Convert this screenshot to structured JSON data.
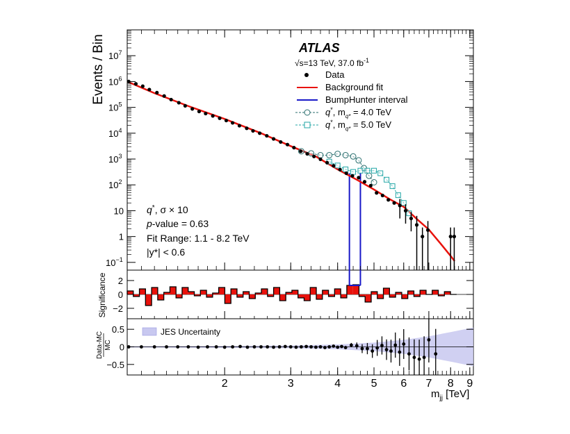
{
  "chart_data": {
    "type": "scatter",
    "experiment": "ATLAS",
    "energy_lumi": {
      "sqrt": "√",
      "s_eq": "s=13 TeV, 37.0 fb",
      "exp": "-1"
    },
    "legend": {
      "data": "Data",
      "bkg": "Background fit",
      "bh": "BumpHunter interval",
      "q4": {
        "pre": "q",
        "sup": "*",
        "mid": ", m",
        "sub": "q*",
        "post": " = 4.0 TeV"
      },
      "q5": {
        "pre": "q",
        "sup": "*",
        "mid": ", m",
        "sub": "q*",
        "post": " = 5.0 TeV"
      }
    },
    "info": {
      "signal": {
        "q": "q",
        "star": "*",
        "rest": ",  σ × 10"
      },
      "pvalue": {
        "p": "p",
        "rest": "-value = 0.63"
      },
      "fit_range": "Fit Range: 1.1 - 8.2 TeV",
      "ystar": "|y*| < 0.6"
    },
    "ylabel": "Events / Bin",
    "sig_ylabel": "Significance",
    "ratio_ylabel": {
      "num": "Data-MC",
      "den": "MC"
    },
    "jes_label": "JES Uncertainty",
    "xlabel": {
      "m": "m",
      "sub": "jj",
      "unit": " [TeV]"
    },
    "x_range": [
      1.1,
      9.2
    ],
    "x_ticks": [
      2,
      3,
      4,
      5,
      6,
      7,
      8,
      9
    ],
    "y_log_range": [
      -1.3,
      8.0
    ],
    "y_ticks": [
      {
        "exp": 7,
        "label": "10",
        "sup": "7"
      },
      {
        "exp": 6,
        "label": "10",
        "sup": "6"
      },
      {
        "exp": 5,
        "label": "10",
        "sup": "5"
      },
      {
        "exp": 4,
        "label": "10",
        "sup": "4"
      },
      {
        "exp": 3,
        "label": "10",
        "sup": "3"
      },
      {
        "exp": 2,
        "label": "10",
        "sup": "2"
      },
      {
        "exp": 1,
        "label": "10",
        "sup": ""
      },
      {
        "exp": 0,
        "label": "1",
        "sup": ""
      },
      {
        "exp": -1,
        "label": "10",
        "sup": "−1"
      }
    ],
    "sig_range": [
      -3.5,
      3.5
    ],
    "sig_ticks": [
      2,
      0,
      -2
    ],
    "ratio_range": [
      -0.8,
      0.8
    ],
    "ratio_ticks": [
      0.5,
      0,
      -0.5
    ],
    "bumphunter_interval": [
      4.3,
      4.6
    ],
    "colors": {
      "data": "#000000",
      "bkg": "#e8120c",
      "bh": "#1818c8",
      "q4": "#2a6e6e",
      "q5": "#22a6a6",
      "jes": "#c8c8f0",
      "sig_fill": "#e8120c"
    },
    "background_fit": [
      [
        1.1,
        6.0
      ],
      [
        1.3,
        5.55
      ],
      [
        1.6,
        5.05
      ],
      [
        2.0,
        4.55
      ],
      [
        2.5,
        4.0
      ],
      [
        3.0,
        3.5
      ],
      [
        3.5,
        3.1
      ],
      [
        4.0,
        2.6
      ],
      [
        4.5,
        2.2
      ],
      [
        5.0,
        1.82
      ],
      [
        5.5,
        1.45
      ],
      [
        6.0,
        1.15
      ],
      [
        6.5,
        0.68
      ],
      [
        7.0,
        0.27
      ],
      [
        7.5,
        -0.25
      ],
      [
        8.0,
        -0.75
      ],
      [
        8.2,
        -0.95
      ]
    ],
    "data_points": [
      [
        1.11,
        6.0
      ],
      [
        1.16,
        5.91
      ],
      [
        1.21,
        5.82
      ],
      [
        1.26,
        5.69
      ],
      [
        1.32,
        5.57
      ],
      [
        1.38,
        5.44
      ],
      [
        1.44,
        5.3
      ],
      [
        1.51,
        5.18
      ],
      [
        1.57,
        5.06
      ],
      [
        1.64,
        4.94
      ],
      [
        1.71,
        4.84
      ],
      [
        1.78,
        4.76
      ],
      [
        1.86,
        4.67
      ],
      [
        1.94,
        4.58
      ],
      [
        2.02,
        4.49
      ],
      [
        2.1,
        4.4
      ],
      [
        2.19,
        4.29
      ],
      [
        2.29,
        4.19
      ],
      [
        2.38,
        4.09
      ],
      [
        2.48,
        4.0
      ],
      [
        2.59,
        3.9
      ],
      [
        2.7,
        3.78
      ],
      [
        2.82,
        3.66
      ],
      [
        2.94,
        3.56
      ],
      [
        3.06,
        3.44
      ],
      [
        3.19,
        3.3
      ],
      [
        3.32,
        3.2
      ],
      [
        3.46,
        3.1
      ],
      [
        3.6,
        2.99
      ],
      [
        3.75,
        2.86
      ],
      [
        3.9,
        2.74
      ],
      [
        4.06,
        2.59
      ],
      [
        4.22,
        2.45
      ],
      [
        4.38,
        2.35
      ],
      [
        4.55,
        2.28
      ],
      [
        4.72,
        2.12
      ],
      [
        4.9,
        1.97
      ],
      [
        5.08,
        1.69
      ],
      [
        5.27,
        1.59
      ],
      [
        5.46,
        1.42
      ],
      [
        5.66,
        1.3
      ],
      [
        5.86,
        1.2
      ],
      [
        6.07,
        1.0
      ],
      [
        6.28,
        0.7
      ],
      [
        6.5,
        0.45
      ],
      [
        6.73,
        0.0
      ],
      [
        6.96,
        0.25
      ],
      [
        8.0,
        0.0
      ],
      [
        8.18,
        0.0
      ]
    ],
    "q4_points": [
      [
        3.2,
        3.3
      ],
      [
        3.4,
        3.22
      ],
      [
        3.6,
        3.15
      ],
      [
        3.8,
        3.15
      ],
      [
        4.0,
        3.2
      ],
      [
        4.2,
        3.15
      ],
      [
        4.4,
        3.1
      ],
      [
        4.55,
        2.95
      ],
      [
        4.7,
        2.65
      ],
      [
        4.85,
        2.35
      ],
      [
        5.0,
        2.1
      ]
    ],
    "q5_points": [
      [
        3.8,
        2.9
      ],
      [
        4.0,
        2.75
      ],
      [
        4.2,
        2.6
      ],
      [
        4.4,
        2.5
      ],
      [
        4.6,
        2.55
      ],
      [
        4.8,
        2.55
      ],
      [
        5.0,
        2.55
      ],
      [
        5.2,
        2.45
      ],
      [
        5.4,
        2.2
      ],
      [
        5.6,
        1.95
      ],
      [
        5.8,
        1.6
      ],
      [
        6.0,
        1.3
      ],
      [
        6.2,
        0.9
      ]
    ],
    "significance": [
      0.5,
      -0.3,
      0.8,
      -1.6,
      1.0,
      -0.8,
      0.3,
      1.1,
      -0.5,
      1.0,
      0.4,
      -0.2,
      0.6,
      -0.4,
      0.2,
      1.0,
      -1.3,
      0.8,
      -0.4,
      0.4,
      -0.6,
      0.2,
      0.8,
      -0.3,
      1.0,
      -0.9,
      0.3,
      0.6,
      -0.5,
      -0.9,
      1.0,
      -0.7,
      0.6,
      -0.3,
      0.8,
      -0.5,
      1.3,
      1.4,
      -0.3,
      -1.1,
      0.4,
      -0.6,
      0.9,
      -0.4,
      0.3,
      -0.6,
      0.5,
      -0.3,
      0.6,
      0.0,
      0.6,
      -0.2,
      0.4,
      0.0
    ],
    "ratio_points": [
      [
        1.11,
        0.0
      ],
      [
        1.2,
        0.0
      ],
      [
        1.3,
        0.0
      ],
      [
        1.4,
        0.0
      ],
      [
        1.5,
        0.0
      ],
      [
        1.6,
        0.0
      ],
      [
        1.7,
        -0.01
      ],
      [
        1.8,
        0.0
      ],
      [
        1.9,
        0.0
      ],
      [
        2.0,
        -0.01
      ],
      [
        2.1,
        0.0
      ],
      [
        2.2,
        0.01
      ],
      [
        2.3,
        -0.01
      ],
      [
        2.4,
        0.0
      ],
      [
        2.5,
        0.0
      ],
      [
        2.6,
        0.0
      ],
      [
        2.7,
        -0.01
      ],
      [
        2.8,
        0.0
      ],
      [
        2.9,
        0.01
      ],
      [
        3.0,
        0.0
      ],
      [
        3.1,
        -0.01
      ],
      [
        3.2,
        0.0
      ],
      [
        3.3,
        0.01
      ],
      [
        3.4,
        0.0
      ],
      [
        3.5,
        -0.01
      ],
      [
        3.6,
        0.0
      ],
      [
        3.7,
        -0.02
      ],
      [
        3.8,
        0.0
      ],
      [
        3.9,
        0.02
      ],
      [
        4.0,
        -0.01
      ],
      [
        4.1,
        0.01
      ],
      [
        4.2,
        -0.02
      ],
      [
        4.35,
        0.05
      ],
      [
        4.5,
        0.03
      ],
      [
        4.65,
        -0.05
      ],
      [
        4.8,
        -0.05
      ],
      [
        4.95,
        -0.12
      ],
      [
        5.1,
        -0.03
      ],
      [
        5.25,
        0.04
      ],
      [
        5.4,
        -0.08
      ],
      [
        5.55,
        -0.12
      ],
      [
        5.7,
        0.05
      ],
      [
        5.85,
        -0.15
      ],
      [
        6.0,
        0.08
      ],
      [
        6.2,
        -0.2
      ],
      [
        6.4,
        -0.3
      ],
      [
        6.6,
        -0.35
      ],
      [
        6.8,
        -0.3
      ],
      [
        7.0,
        0.2
      ],
      [
        7.3,
        -0.2
      ]
    ],
    "jes_band": [
      [
        1.1,
        0.02
      ],
      [
        2.0,
        0.03
      ],
      [
        3.0,
        0.04
      ],
      [
        4.0,
        0.07
      ],
      [
        5.0,
        0.12
      ],
      [
        6.0,
        0.2
      ],
      [
        7.0,
        0.3
      ],
      [
        8.0,
        0.42
      ],
      [
        9.2,
        0.55
      ]
    ]
  }
}
